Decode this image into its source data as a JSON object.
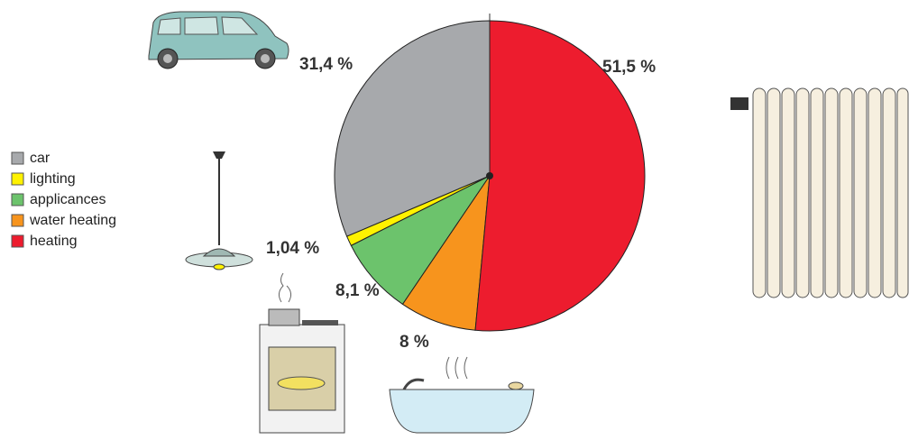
{
  "chart_data": {
    "type": "pie",
    "categories": [
      "car",
      "lighting",
      "applicances",
      "water heating",
      "heating"
    ],
    "values": [
      31.4,
      1.04,
      8.1,
      8,
      51.5
    ],
    "value_labels": [
      "31,4 %",
      "1,04 %",
      "8,1 %",
      "8 %",
      "51,5 %"
    ],
    "colors": [
      "#a7a9ac",
      "#fff200",
      "#6cc36c",
      "#f7941d",
      "#ed1c2e"
    ]
  }
}
